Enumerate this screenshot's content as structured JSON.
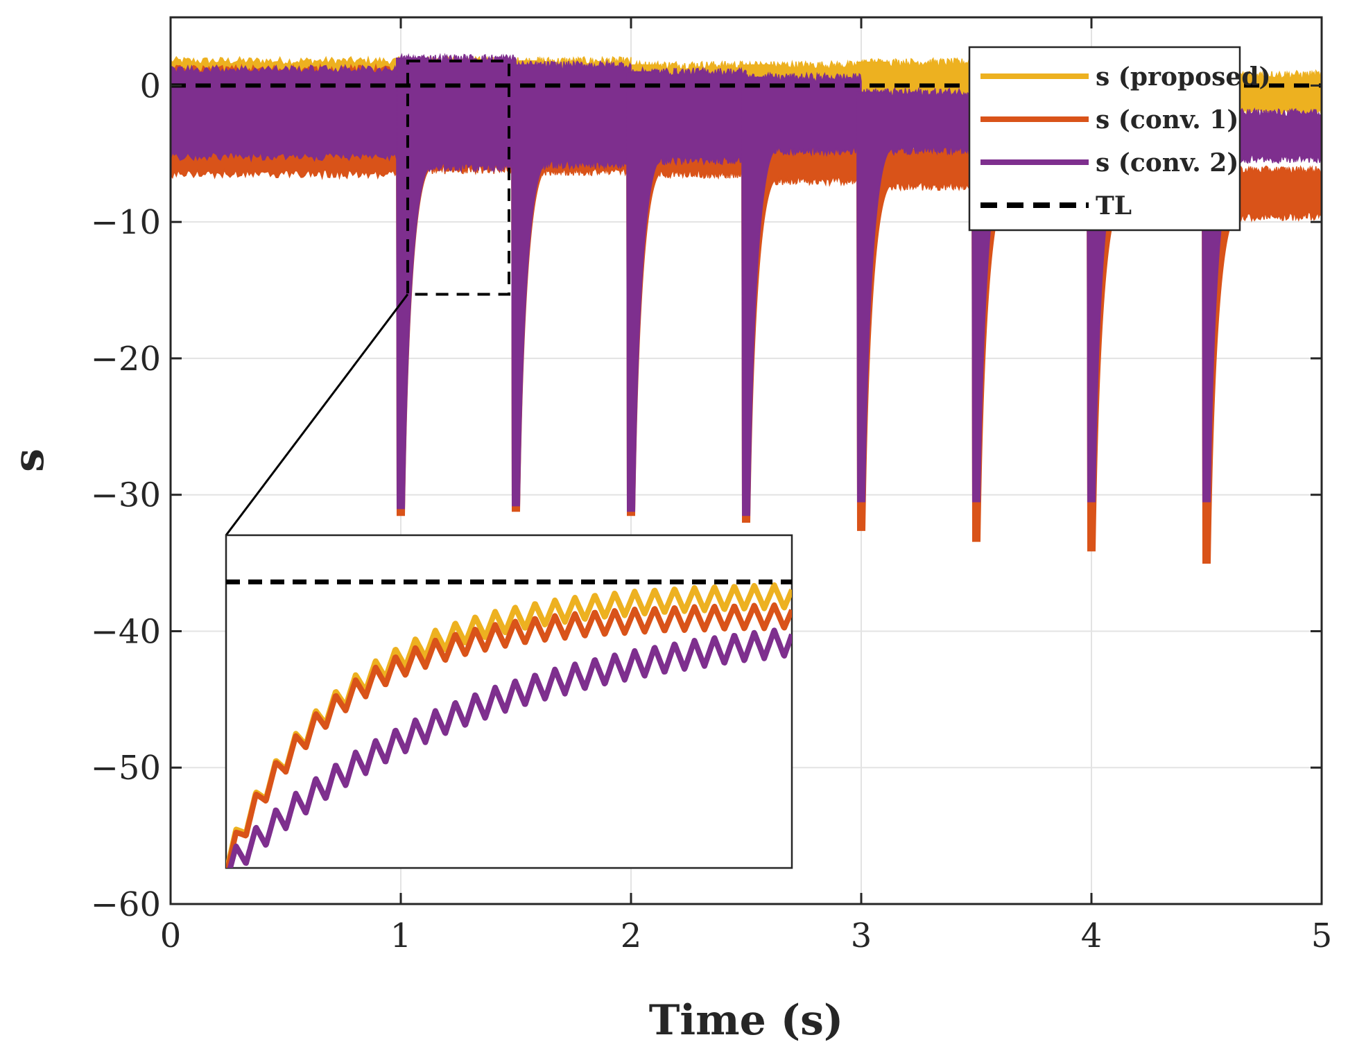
{
  "chart_data": {
    "type": "line",
    "title": "",
    "xlabel": "Time (s)",
    "ylabel": "s",
    "xlim": [
      0,
      5
    ],
    "ylim": [
      -60,
      5
    ],
    "xticks": [
      0,
      1,
      2,
      3,
      4,
      5
    ],
    "xtick_labels": [
      "0",
      "1",
      "2",
      "3",
      "4",
      "5"
    ],
    "yticks": [
      0,
      -10,
      -20,
      -30,
      -40,
      -50,
      -60
    ],
    "ytick_labels": [
      "0",
      "−10",
      "−20",
      "−30",
      "−40",
      "−50",
      "−60"
    ],
    "grid": true,
    "legend_position": "top-right",
    "step_times": [
      1.0,
      1.5,
      2.0,
      2.5,
      3.0,
      3.5,
      4.0,
      4.5
    ],
    "series": [
      {
        "name": "s (proposed)",
        "color": "#EDB120",
        "style": "solid",
        "band_segments": [
          {
            "t0": 0.0,
            "t1": 1.0,
            "upper": 1.8,
            "lower": -5.0
          },
          {
            "t0": 1.0,
            "t1": 1.5,
            "upper": 1.8,
            "lower": -4.8
          },
          {
            "t0": 1.5,
            "t1": 2.0,
            "upper": 1.8,
            "lower": -4.8
          },
          {
            "t0": 2.0,
            "t1": 2.5,
            "upper": 1.5,
            "lower": -4.8
          },
          {
            "t0": 2.5,
            "t1": 3.0,
            "upper": 1.5,
            "lower": -4.5
          },
          {
            "t0": 3.0,
            "t1": 3.5,
            "upper": 1.7,
            "lower": -4.5
          },
          {
            "t0": 3.5,
            "t1": 4.0,
            "upper": 1.3,
            "lower": -4.5
          },
          {
            "t0": 4.0,
            "t1": 4.5,
            "upper": 1.2,
            "lower": -4.2
          },
          {
            "t0": 4.5,
            "t1": 5.0,
            "upper": 0.8,
            "lower": -2.0
          }
        ],
        "spike_minima": [
          -30.5,
          -30.5,
          -30.5,
          -30.8,
          -30.5,
          -30.5,
          -30.5,
          -30.5
        ]
      },
      {
        "name": "s (conv. 1)",
        "color": "#D95319",
        "style": "solid",
        "band_segments": [
          {
            "t0": 0.0,
            "t1": 1.0,
            "upper": 1.2,
            "lower": -6.5
          },
          {
            "t0": 1.0,
            "t1": 1.5,
            "upper": 1.2,
            "lower": -6.2
          },
          {
            "t0": 1.5,
            "t1": 2.0,
            "upper": 0.8,
            "lower": -6.3
          },
          {
            "t0": 2.0,
            "t1": 2.5,
            "upper": 0.3,
            "lower": -6.5
          },
          {
            "t0": 2.5,
            "t1": 3.0,
            "upper": -3.0,
            "lower": -7.0
          },
          {
            "t0": 3.0,
            "t1": 3.5,
            "upper": -4.5,
            "lower": -7.4
          },
          {
            "t0": 3.5,
            "t1": 4.0,
            "upper": -4.8,
            "lower": -8.0
          },
          {
            "t0": 4.0,
            "t1": 4.5,
            "upper": -5.5,
            "lower": -8.6
          },
          {
            "t0": 4.5,
            "t1": 5.0,
            "upper": -6.2,
            "lower": -9.6
          }
        ],
        "spike_minima": [
          -31.5,
          -31.2,
          -31.5,
          -32.0,
          -32.6,
          -33.4,
          -34.1,
          -35.0
        ]
      },
      {
        "name": "s (conv. 2)",
        "color": "#7E2F8E",
        "style": "solid",
        "band_segments": [
          {
            "t0": 0.0,
            "t1": 1.0,
            "upper": 1.2,
            "lower": -5.2
          },
          {
            "t0": 1.0,
            "t1": 1.5,
            "upper": 2.0,
            "lower": -6.0
          },
          {
            "t0": 1.5,
            "t1": 2.0,
            "upper": 1.5,
            "lower": -5.8
          },
          {
            "t0": 2.0,
            "t1": 2.5,
            "upper": 1.0,
            "lower": -5.5
          },
          {
            "t0": 2.5,
            "t1": 3.0,
            "upper": 0.6,
            "lower": -4.8
          },
          {
            "t0": 3.0,
            "t1": 3.5,
            "upper": -0.5,
            "lower": -4.8
          },
          {
            "t0": 3.5,
            "t1": 4.0,
            "upper": -1.0,
            "lower": -5.0
          },
          {
            "t0": 4.0,
            "t1": 4.5,
            "upper": -1.5,
            "lower": -5.2
          },
          {
            "t0": 4.5,
            "t1": 5.0,
            "upper": -2.0,
            "lower": -5.4
          }
        ],
        "spike_minima": [
          -31.0,
          -30.8,
          -31.2,
          -31.5,
          -30.5,
          -30.5,
          -30.5,
          -30.5
        ]
      },
      {
        "name": "TL",
        "color": "#000000",
        "style": "dashed",
        "value": 0
      }
    ],
    "inset": {
      "xlim": [
        1.03,
        1.47
      ],
      "ylim": [
        -15.3,
        1.8
      ],
      "series_samples": [
        {
          "name": "s (proposed)",
          "tau": 0.095,
          "offset": -1.2,
          "amplitude": 0.6,
          "start": -15.0
        },
        {
          "name": "s (conv. 1)",
          "tau": 0.085,
          "offset": -2.3,
          "amplitude": 0.6,
          "start": -15.2
        },
        {
          "name": "s (conv. 2)",
          "tau": 0.19,
          "offset": -2.4,
          "amplitude": 0.7,
          "start": -15.4
        },
        {
          "name": "TL",
          "value": -0.6
        }
      ]
    }
  }
}
